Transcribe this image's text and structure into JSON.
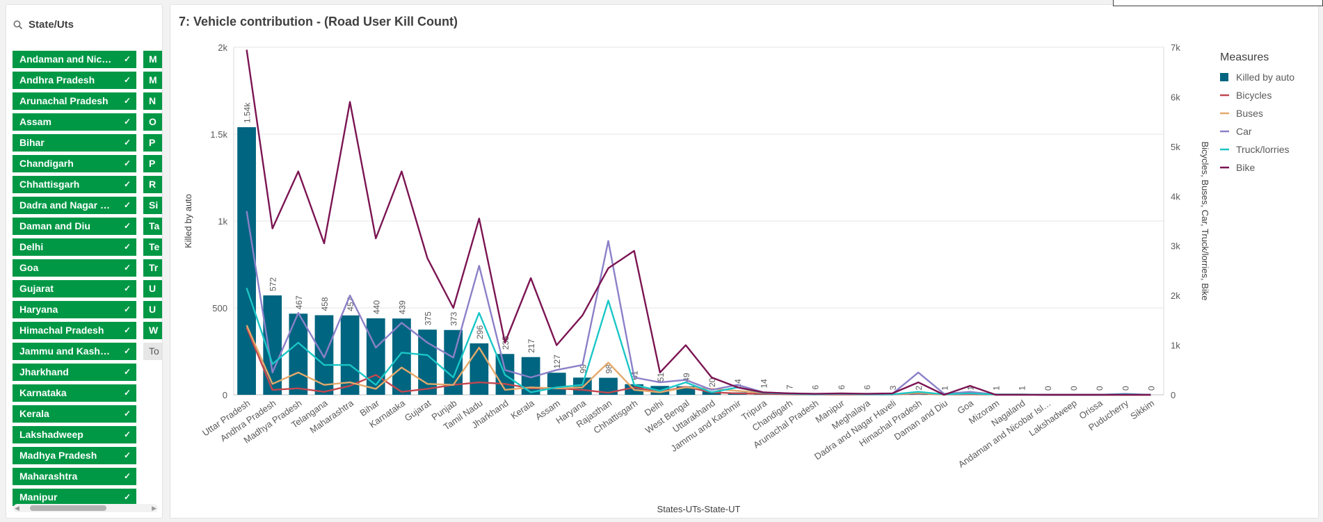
{
  "filter": {
    "title": "State/Uts",
    "items_col1": [
      "Andaman and Nicobar Islands",
      "Andhra Pradesh",
      "Arunachal Pradesh",
      "Assam",
      "Bihar",
      "Chandigarh",
      "Chhattisgarh",
      "Dadra and Nagar Haveli",
      "Daman and Diu",
      "Delhi",
      "Goa",
      "Gujarat",
      "Haryana",
      "Himachal Pradesh",
      "Jammu and Kashmir",
      "Jharkhand",
      "Karnataka",
      "Kerala",
      "Lakshadweep",
      "Madhya Pradesh",
      "Maharashtra",
      "Manipur"
    ],
    "items_col2": [
      "M",
      "M",
      "N",
      "O",
      "P",
      "P",
      "R",
      "Si",
      "Ta",
      "Te",
      "Tr",
      "U",
      "U",
      "W"
    ],
    "item_col2_grey": "To",
    "check": "✓",
    "selected_color": "#009845"
  },
  "chart_data": {
    "title": "7: Vehicle contribution - (Road User Kill Count)",
    "type": "bar+line",
    "xlabel": "States-UTs-State-UT",
    "ylabel_left": "Killed by auto",
    "ylabel_right": "Bicycles, Buses, Car, Truck/lorries, Bike",
    "ylim_left": [
      0,
      2000
    ],
    "yticks_left": [
      "0",
      "500",
      "1k",
      "1.5k",
      "2k"
    ],
    "ylim_right": [
      0,
      7000
    ],
    "yticks_right": [
      "0",
      "1k",
      "2k",
      "3k",
      "4k",
      "5k",
      "6k",
      "7k"
    ],
    "grid": true,
    "legend_title": "Measures",
    "legend_position": "right",
    "categories": [
      "Uttar Pradesh",
      "Andhra Pradesh",
      "Madhya Pradesh",
      "Telangana",
      "Maharashtra",
      "Bihar",
      "Karnataka",
      "Gujarat",
      "Punjab",
      "Tamil Nadu",
      "Jharkhand",
      "Kerala",
      "Assam",
      "Haryana",
      "Rajasthan",
      "Chhattisgarh",
      "Delhi",
      "West Bengal",
      "Uttarakhand",
      "Jammu and Kashmir",
      "Tripura",
      "Chandigarh",
      "Arunachal Pradesh",
      "Manipur",
      "Meghalaya",
      "Dadra and Nagar Haveli",
      "Himachal Pradesh",
      "Daman and Diu",
      "Goa",
      "Mizoram",
      "Nagaland",
      "Andaman and Nicobar Isl…",
      "Lakshadweep",
      "Orissa",
      "Puducherry",
      "Sikkim"
    ],
    "bar_series": {
      "name": "Killed by auto",
      "color": "#006580",
      "values": [
        1540,
        572,
        467,
        458,
        457,
        440,
        439,
        375,
        373,
        296,
        235,
        217,
        127,
        99,
        98,
        61,
        51,
        49,
        20,
        14,
        14,
        7,
        6,
        6,
        6,
        3,
        2,
        1,
        1,
        1,
        1,
        0,
        0,
        0,
        0,
        0
      ],
      "labels": [
        "1.54k",
        "572",
        "467",
        "458",
        "457",
        "440",
        "439",
        "375",
        "373",
        "296",
        "235",
        "217",
        "127",
        "99",
        "98",
        "61",
        "51",
        "49",
        "20",
        "14",
        "14",
        "7",
        "6",
        "6",
        "6",
        "3",
        "2",
        "1",
        "1",
        "1",
        "1",
        "0",
        "0",
        "0",
        "0",
        "0"
      ]
    },
    "line_series": [
      {
        "name": "Bicycles",
        "color": "#c2474f",
        "values": [
          1350,
          100,
          130,
          60,
          180,
          400,
          60,
          120,
          200,
          250,
          220,
          130,
          130,
          100,
          40,
          150,
          60,
          160,
          50,
          30,
          20,
          10,
          5,
          5,
          5,
          5,
          30,
          5,
          10,
          5,
          5,
          0,
          0,
          0,
          0,
          0
        ]
      },
      {
        "name": "Buses",
        "color": "#e4a96b",
        "values": [
          1400,
          220,
          450,
          200,
          250,
          120,
          550,
          220,
          200,
          950,
          100,
          150,
          130,
          150,
          650,
          100,
          50,
          150,
          120,
          80,
          40,
          20,
          10,
          20,
          10,
          10,
          40,
          5,
          30,
          5,
          5,
          0,
          0,
          0,
          0,
          0
        ]
      },
      {
        "name": "Car",
        "color": "#8b80c8",
        "values": [
          3700,
          450,
          1650,
          750,
          2000,
          950,
          1450,
          1050,
          750,
          2600,
          500,
          350,
          500,
          600,
          3100,
          350,
          250,
          300,
          100,
          200,
          50,
          30,
          20,
          20,
          20,
          20,
          450,
          20,
          60,
          5,
          5,
          0,
          0,
          0,
          20,
          0
        ]
      },
      {
        "name": "Truck/lorries",
        "color": "#1ac6c6",
        "values": [
          2150,
          620,
          1050,
          600,
          600,
          200,
          850,
          800,
          350,
          1650,
          400,
          50,
          150,
          200,
          1900,
          200,
          80,
          250,
          50,
          150,
          40,
          20,
          10,
          20,
          10,
          10,
          60,
          10,
          30,
          5,
          5,
          0,
          0,
          0,
          10,
          0
        ]
      },
      {
        "name": "Bike",
        "color": "#7b1452",
        "values": [
          6950,
          3350,
          4500,
          3050,
          5900,
          3150,
          4500,
          2750,
          1750,
          3550,
          1050,
          2350,
          1000,
          1600,
          2550,
          2900,
          450,
          1000,
          350,
          150,
          50,
          30,
          20,
          30,
          20,
          30,
          250,
          0,
          180,
          0,
          0,
          0,
          0,
          0,
          0,
          0
        ]
      }
    ]
  }
}
